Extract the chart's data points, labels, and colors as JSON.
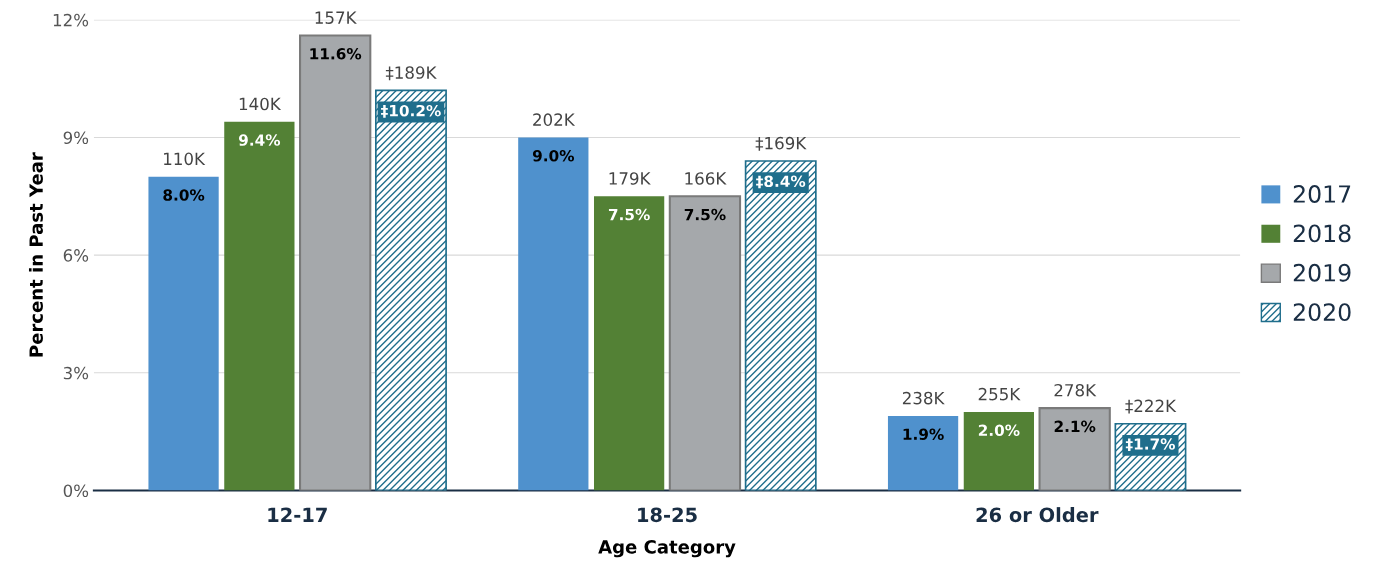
{
  "chart_data": {
    "type": "bar",
    "xlabel": "Age Category",
    "ylabel": "Percent in Past Year",
    "categories": [
      "12-17",
      "18-25",
      "26 or Older"
    ],
    "series": [
      {
        "name": "2017",
        "color": "#4f91cd",
        "values": [
          8.0,
          9.0,
          1.9
        ],
        "value_labels": [
          "8.0%",
          "9.0%",
          "1.9%"
        ]
      },
      {
        "name": "2018",
        "color": "#538135",
        "values": [
          9.4,
          7.5,
          2.0
        ],
        "value_labels": [
          "9.4%",
          "7.5%",
          "2.0%"
        ]
      },
      {
        "name": "2019",
        "color": "#a5a8ab",
        "values": [
          11.6,
          7.5,
          2.1
        ],
        "value_labels": [
          "11.6%",
          "7.5%",
          "2.1%"
        ]
      },
      {
        "name": "2020",
        "color": "#1f6e8c",
        "values": [
          10.2,
          8.4,
          1.7
        ],
        "value_labels": [
          "‡10.2%",
          "‡8.4%",
          "‡1.7%"
        ]
      }
    ],
    "annotations": [
      "110K",
      "140K",
      "157K",
      "‡189K",
      "202K",
      "179K",
      "166K",
      "‡169K",
      "238K",
      "255K",
      "278K",
      "‡222K"
    ],
    "ylim": [
      0,
      12
    ],
    "yticks": [
      {
        "value": 0,
        "label": "0%"
      },
      {
        "value": 3,
        "label": "3%"
      },
      {
        "value": 6,
        "label": "6%"
      },
      {
        "value": 9,
        "label": "9%"
      },
      {
        "value": 12,
        "label": "12%"
      }
    ],
    "grid": "y",
    "legend": "right"
  }
}
